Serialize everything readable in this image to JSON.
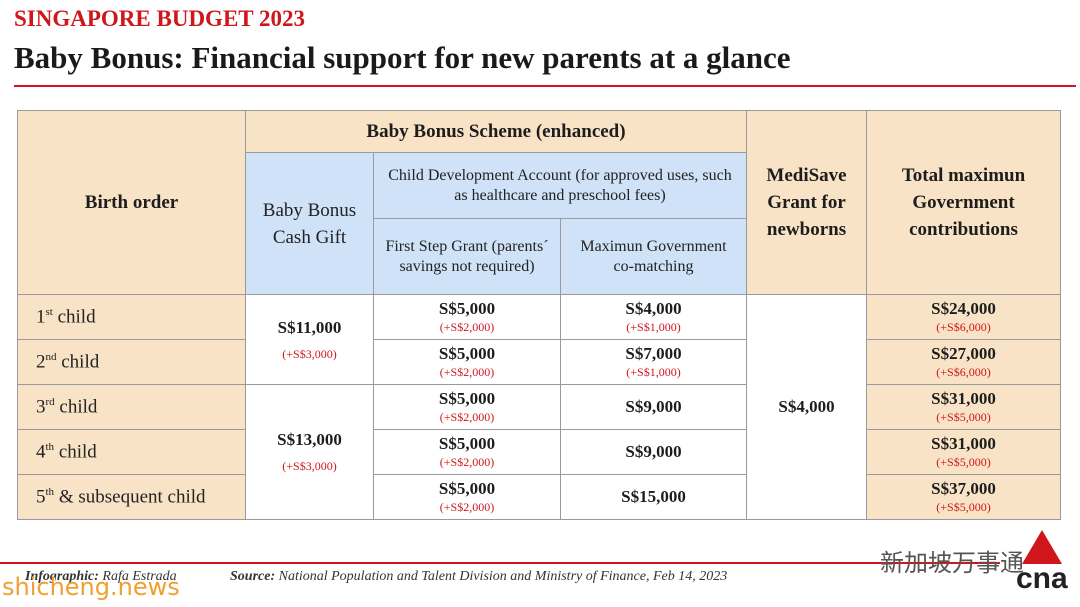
{
  "header": {
    "kicker": "SINGAPORE BUDGET 2023",
    "title": "Baby Bonus: Financial support for new parents at a glance"
  },
  "table": {
    "headers": {
      "birth_order": "Birth order",
      "scheme": "Baby Bonus Scheme (enhanced)",
      "cash_gift": "Baby Bonus Cash Gift",
      "cda": "Child Development Account (for approved uses, such as healthcare and preschool fees)",
      "first_step": "First Step Grant (parents´ savings not required)",
      "co_matching": "Maximun Government co-matching",
      "medisave": "MediSave Grant for newborns",
      "total": "Total maximun Government contributions"
    },
    "rows": [
      {
        "order": {
          "num": "1",
          "sup": "st",
          "text": " child"
        },
        "first_step": {
          "amount": "S$5,000",
          "increase": "(+S$2,000)"
        },
        "co_matching": {
          "amount": "S$4,000",
          "increase": "(+S$1,000)"
        },
        "total": {
          "amount": "S$24,000",
          "increase": "(+S$6,000)"
        }
      },
      {
        "order": {
          "num": "2",
          "sup": "nd",
          "text": " child"
        },
        "first_step": {
          "amount": "S$5,000",
          "increase": "(+S$2,000)"
        },
        "co_matching": {
          "amount": "S$7,000",
          "increase": "(+S$1,000)"
        },
        "total": {
          "amount": "S$27,000",
          "increase": "(+S$6,000)"
        }
      },
      {
        "order": {
          "num": "3",
          "sup": "rd",
          "text": " child"
        },
        "first_step": {
          "amount": "S$5,000",
          "increase": "(+S$2,000)"
        },
        "co_matching": {
          "amount": "S$9,000"
        },
        "total": {
          "amount": "S$31,000",
          "increase": "(+S$5,000)"
        }
      },
      {
        "order": {
          "num": "4",
          "sup": "th",
          "text": " child"
        },
        "first_step": {
          "amount": "S$5,000",
          "increase": "(+S$2,000)"
        },
        "co_matching": {
          "amount": "S$9,000"
        },
        "total": {
          "amount": "S$31,000",
          "increase": "(+S$5,000)"
        }
      },
      {
        "order": {
          "num": "5",
          "sup": "th",
          "text": " & subsequent child"
        },
        "first_step": {
          "amount": "S$5,000",
          "increase": "(+S$2,000)"
        },
        "co_matching": {
          "amount": "S$15,000"
        },
        "total": {
          "amount": "S$37,000",
          "increase": "(+S$5,000)"
        }
      }
    ],
    "cash_gift": [
      {
        "amount": "S$11,000",
        "increase": "(+S$3,000)"
      },
      {
        "amount": "S$13,000",
        "increase": "(+S$3,000)"
      }
    ],
    "medisave": "S$4,000"
  },
  "footer": {
    "infographic_label": "Infographic:",
    "infographic_name": "Rafa Estrada",
    "source_label": "Source:",
    "source_text": "National Population and Talent Division and Ministry of Finance, Feb 14, 2023"
  },
  "watermark": {
    "wechat": "新加坡万事通",
    "site": "shicheng.news",
    "logo": "cna"
  }
}
